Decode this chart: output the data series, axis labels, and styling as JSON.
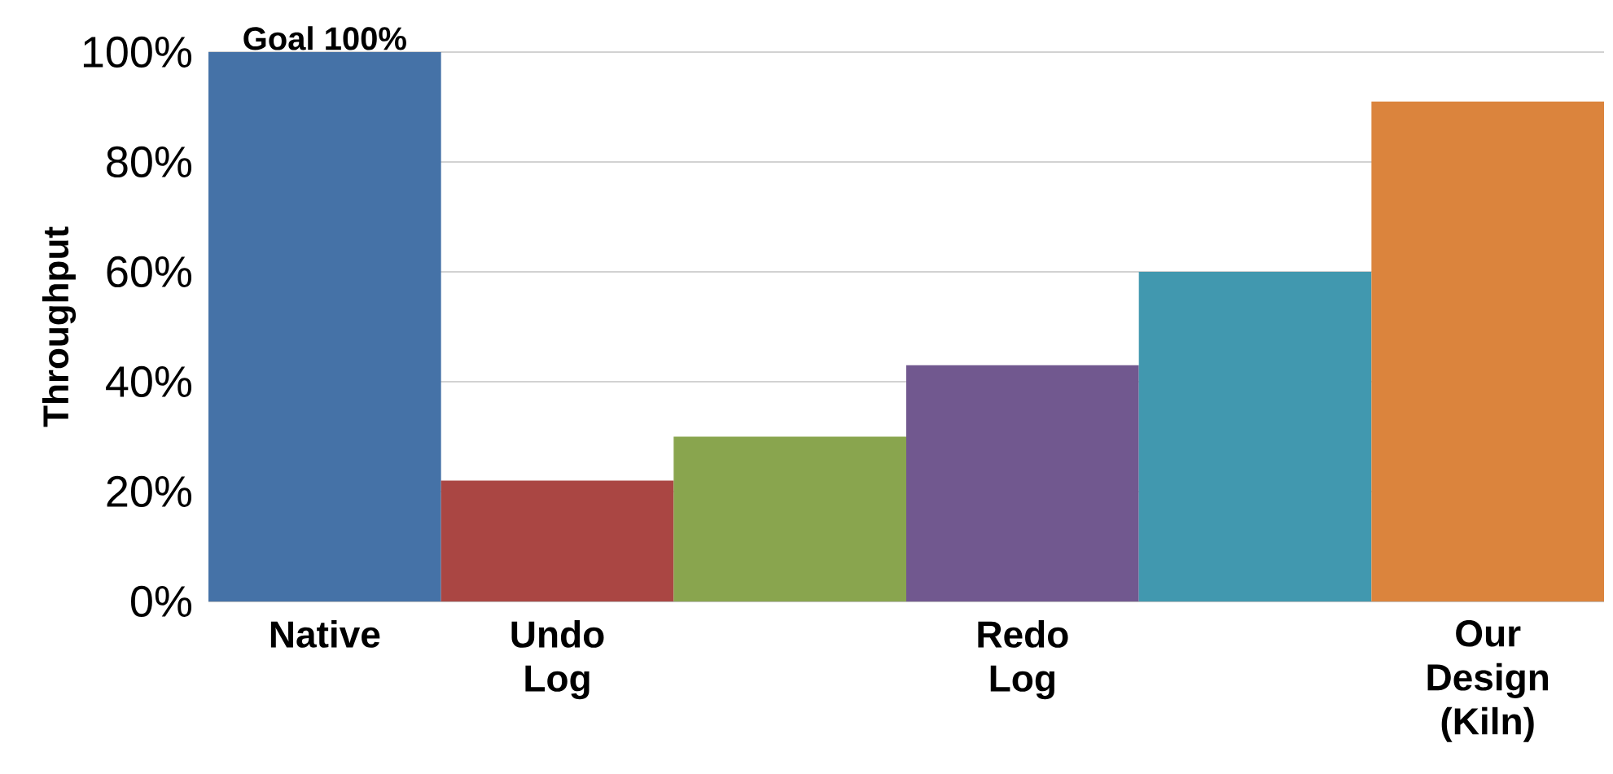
{
  "chart_data": {
    "type": "bar",
    "ylabel": "Throughput",
    "categories": [
      "Native",
      "Undo Log",
      null,
      "Redo Log",
      null,
      "Our Design (Kiln)"
    ],
    "values": [
      100,
      22,
      30,
      43,
      60,
      91
    ],
    "colors": [
      "#4572a7",
      "#aa4643",
      "#89a54e",
      "#71588f",
      "#4198af",
      "#db843d"
    ],
    "ylim": [
      0,
      100
    ],
    "yticks": [
      {
        "value": 0,
        "label": "0%"
      },
      {
        "value": 20,
        "label": "20%"
      },
      {
        "value": 40,
        "label": "40%"
      },
      {
        "value": 60,
        "label": "60%"
      },
      {
        "value": 80,
        "label": "80%"
      },
      {
        "value": 100,
        "label": "100%"
      }
    ],
    "grid": "y",
    "annotations": [
      {
        "text": "Goal 100%",
        "x": "Native",
        "y": 100
      }
    ]
  }
}
